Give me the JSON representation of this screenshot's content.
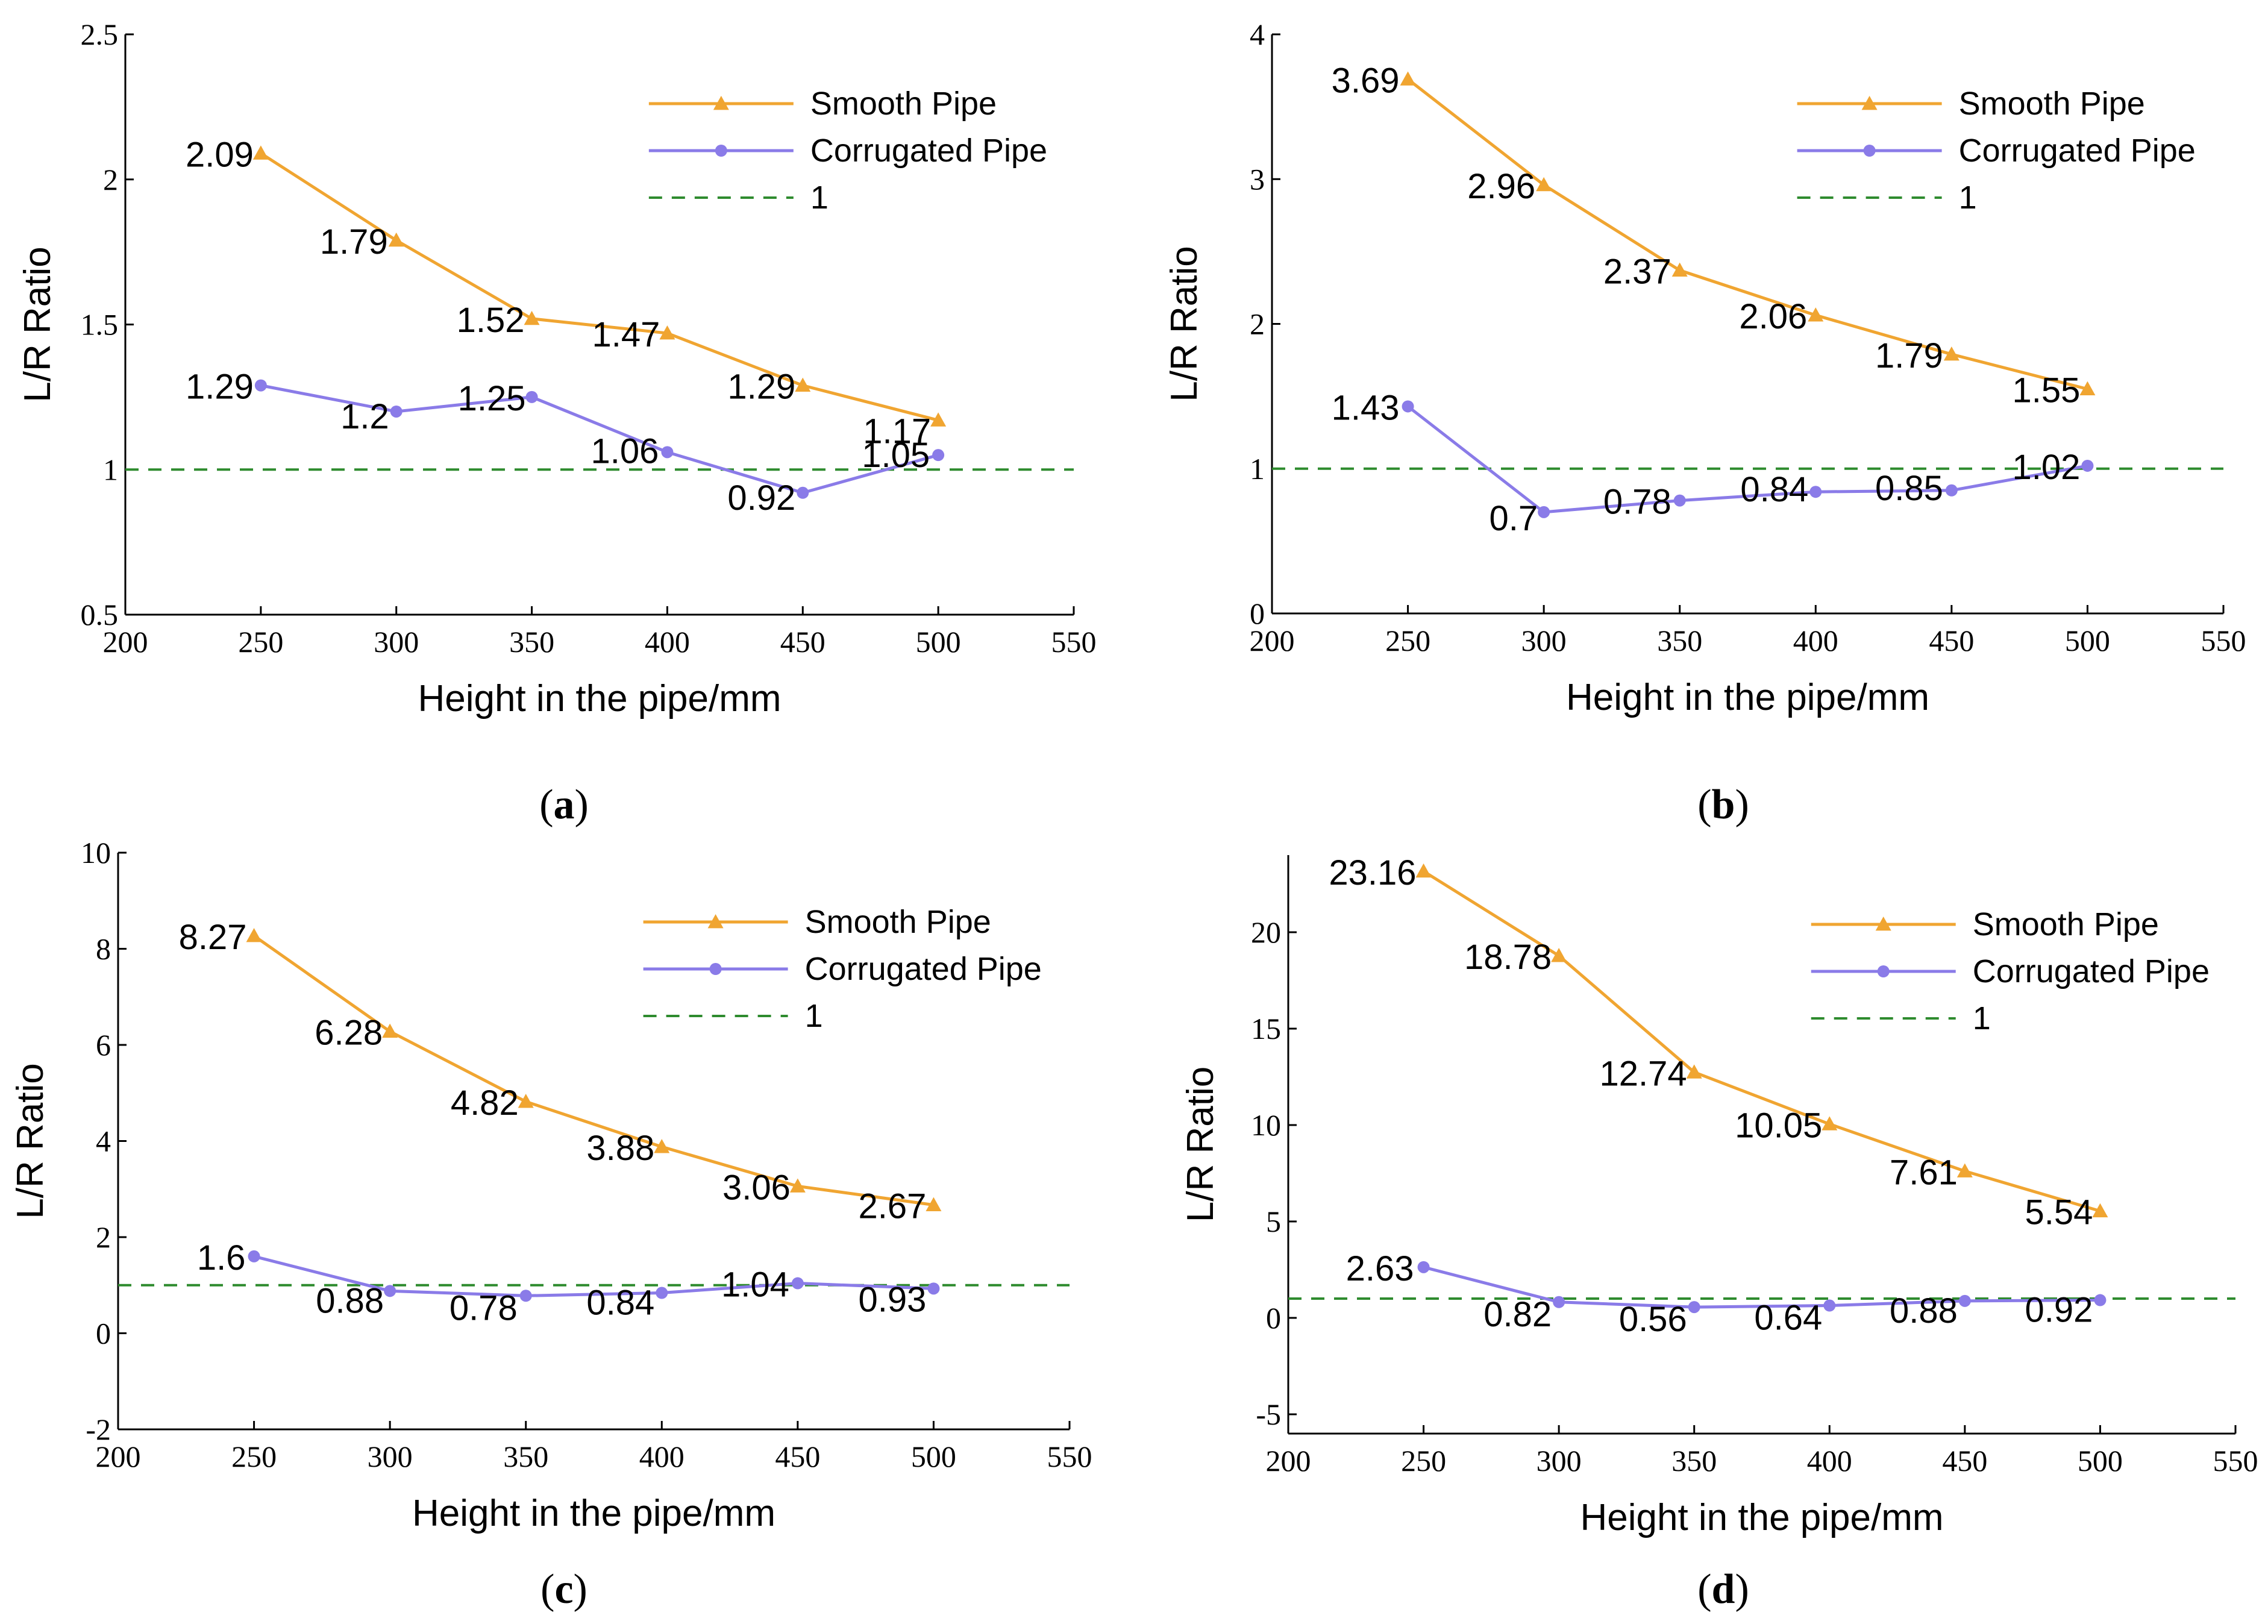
{
  "colors": {
    "smooth": "#F0A531",
    "corrugated": "#8A7BE8",
    "reference": "#2E8B2E",
    "axis": "#000000"
  },
  "chart_data": [
    {
      "type": "line",
      "panel": "a",
      "caption": {
        "open": "(",
        "letter": "a",
        "close": ")"
      },
      "xlabel": "Height in the pipe/mm",
      "ylabel": "L/R Ratio",
      "xlim": [
        200,
        550
      ],
      "ylim": [
        0.5,
        2.5
      ],
      "xticks": [
        "200",
        "250",
        "300",
        "350",
        "400",
        "450",
        "500",
        "550"
      ],
      "yticks": [
        "0.5",
        "1",
        "1.5",
        "2",
        "2.5"
      ],
      "x": [
        250,
        300,
        350,
        400,
        450,
        500
      ],
      "reference": 1,
      "legend_position": "top-right",
      "series": [
        {
          "name": "Smooth Pipe",
          "marker": "triangle",
          "values": [
            2.09,
            1.79,
            1.52,
            1.47,
            1.29,
            1.17
          ],
          "labels": [
            "2.09",
            "1.79",
            "1.52",
            "1.47",
            "1.29",
            "1.17"
          ]
        },
        {
          "name": "Corrugated Pipe",
          "marker": "circle",
          "values": [
            1.29,
            1.2,
            1.25,
            1.06,
            0.92,
            1.05
          ],
          "labels": [
            "1.29",
            "1.2",
            "1.25",
            "1.06",
            "0.92",
            "1.05"
          ]
        },
        {
          "name": "1",
          "style": "dashed"
        }
      ]
    },
    {
      "type": "line",
      "panel": "b",
      "caption": {
        "open": "(",
        "letter": "b",
        "close": ")"
      },
      "xlabel": "Height in the pipe/mm",
      "ylabel": "L/R Ratio",
      "xlim": [
        200,
        550
      ],
      "ylim": [
        0,
        4
      ],
      "xticks": [
        "200",
        "250",
        "300",
        "350",
        "400",
        "450",
        "500",
        "550"
      ],
      "yticks": [
        "0",
        "1",
        "2",
        "3",
        "4"
      ],
      "x": [
        250,
        300,
        350,
        400,
        450,
        500
      ],
      "reference": 1,
      "legend_position": "top-right",
      "series": [
        {
          "name": "Smooth Pipe",
          "marker": "triangle",
          "values": [
            3.69,
            2.96,
            2.37,
            2.06,
            1.79,
            1.55
          ],
          "labels": [
            "3.69",
            "2.96",
            "2.37",
            "2.06",
            "1.79",
            "1.55"
          ]
        },
        {
          "name": "Corrugated Pipe",
          "marker": "circle",
          "values": [
            1.43,
            0.7,
            0.78,
            0.84,
            0.85,
            1.02
          ],
          "labels": [
            "1.43",
            "0.7",
            "0.78",
            "0.84",
            "0.85",
            "1.02"
          ]
        },
        {
          "name": "1",
          "style": "dashed"
        }
      ]
    },
    {
      "type": "line",
      "panel": "c",
      "caption": {
        "open": "(",
        "letter": "c",
        "close": ")"
      },
      "xlabel": "Height in the pipe/mm",
      "ylabel": "L/R Ratio",
      "xlim": [
        200,
        550
      ],
      "ylim": [
        -2,
        10
      ],
      "xticks": [
        "200",
        "250",
        "300",
        "350",
        "400",
        "450",
        "500",
        "550"
      ],
      "yticks": [
        "-2",
        "0",
        "2",
        "4",
        "6",
        "8",
        "10"
      ],
      "x": [
        250,
        300,
        350,
        400,
        450,
        500
      ],
      "reference": 1,
      "legend_position": "top-right",
      "series": [
        {
          "name": "Smooth Pipe",
          "marker": "triangle",
          "values": [
            8.27,
            6.28,
            4.82,
            3.88,
            3.06,
            2.67
          ],
          "labels": [
            "8.27",
            "6.28",
            "4.82",
            "3.88",
            "3.06",
            "2.67"
          ]
        },
        {
          "name": "Corrugated Pipe",
          "marker": "circle",
          "values": [
            1.6,
            0.88,
            0.78,
            0.84,
            1.04,
            0.93
          ],
          "labels": [
            "1.6",
            "0.88",
            "0.78",
            "0.84",
            "1.04",
            "0.93"
          ]
        },
        {
          "name": "1",
          "style": "dashed"
        }
      ]
    },
    {
      "type": "line",
      "panel": "d",
      "caption": {
        "open": "(",
        "letter": "d",
        "close": ")"
      },
      "xlabel": "Height in the pipe/mm",
      "ylabel": "L/R Ratio",
      "xlim": [
        200,
        550
      ],
      "ylim": [
        -6,
        24
      ],
      "xticks": [
        "200",
        "250",
        "300",
        "350",
        "400",
        "450",
        "500",
        "550"
      ],
      "yticks": [
        "-5",
        "0",
        "5",
        "10",
        "15",
        "20"
      ],
      "x": [
        250,
        300,
        350,
        400,
        450,
        500
      ],
      "reference": 1,
      "legend_position": "top-right",
      "series": [
        {
          "name": "Smooth Pipe",
          "marker": "triangle",
          "values": [
            23.16,
            18.78,
            12.74,
            10.05,
            7.61,
            5.54
          ],
          "labels": [
            "23.16",
            "18.78",
            "12.74",
            "10.05",
            "7.61",
            "5.54"
          ]
        },
        {
          "name": "Corrugated Pipe",
          "marker": "circle",
          "values": [
            2.63,
            0.82,
            0.56,
            0.64,
            0.88,
            0.92
          ],
          "labels": [
            "2.63",
            "0.82",
            "0.56",
            "0.64",
            "0.88",
            "0.92"
          ]
        },
        {
          "name": "1",
          "style": "dashed"
        }
      ]
    }
  ]
}
